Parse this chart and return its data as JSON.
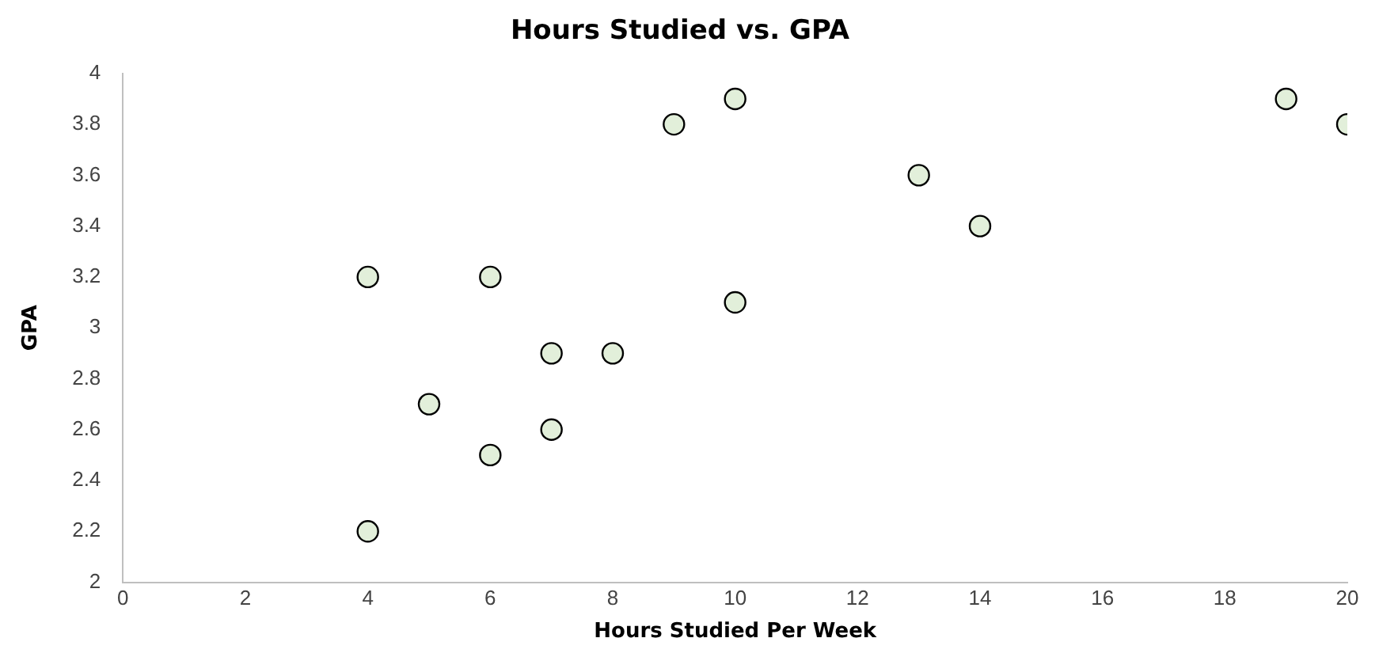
{
  "chart_data": {
    "type": "scatter",
    "title": "Hours Studied vs. GPA",
    "xlabel": "Hours Studied Per Week",
    "ylabel": "GPA",
    "series": [
      {
        "color": "#e2efda",
        "x": [
          4,
          6,
          9,
          10,
          13,
          14,
          19,
          20,
          10,
          7,
          8,
          5,
          7,
          6,
          4
        ],
        "values": [
          3.2,
          3.2,
          3.8,
          3.9,
          3.6,
          3.4,
          3.9,
          3.8,
          3.1,
          2.9,
          2.9,
          2.7,
          2.6,
          2.5,
          2.2
        ]
      }
    ],
    "xlim": [
      0,
      20
    ],
    "xticks": [
      0,
      2,
      4,
      6,
      8,
      10,
      12,
      14,
      16,
      18,
      20
    ],
    "ylim": [
      2,
      4
    ],
    "yticks": [
      2,
      2.2,
      2.4,
      2.6,
      2.8,
      3,
      3.2,
      3.4,
      3.6,
      3.8,
      4
    ],
    "grid": false,
    "legend": false,
    "marker": "circle"
  }
}
